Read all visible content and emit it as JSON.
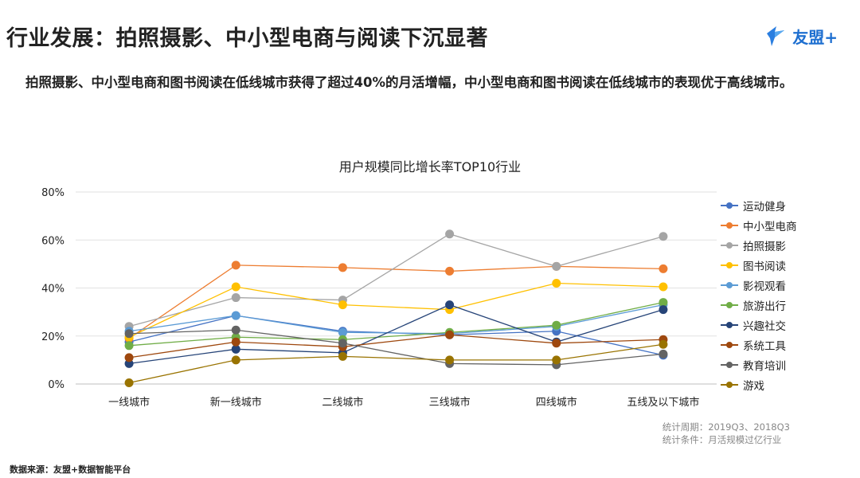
{
  "header": {
    "title": "行业发展：拍照摄影、中小型电商与阅读下沉显著",
    "logo_text": "友盟+"
  },
  "subtitle": "拍照摄影、中小型电商和图书阅读在低线城市获得了超过40%的月活增幅，中小型电商和图书阅读在低线城市的表现优于高线城市。",
  "footer": {
    "note_line1": "统计周期：2019Q3、2018Q3",
    "note_line2": "统计条件：月活规模过亿行业",
    "source": "数据来源：友盟+数据智能平台"
  },
  "chart_data": {
    "type": "line",
    "title": "用户规模同比增长率TOP10行业",
    "categories": [
      "一线城市",
      "新一线城市",
      "二线城市",
      "三线城市",
      "四线城市",
      "五线及以下城市"
    ],
    "ylim": [
      0,
      80
    ],
    "yticks": [
      0,
      20,
      40,
      60,
      80
    ],
    "ytick_labels": [
      "0%",
      "20%",
      "40%",
      "60%",
      "80%"
    ],
    "grid": true,
    "legend_position": "right",
    "series": [
      {
        "name": "运动健身",
        "color": "#4472c4",
        "values": [
          17.5,
          28.5,
          22,
          20.5,
          22,
          12
        ]
      },
      {
        "name": "中小型电商",
        "color": "#ed7d31",
        "values": [
          19,
          49.5,
          48.5,
          47,
          49,
          48
        ]
      },
      {
        "name": "拍照摄影",
        "color": "#a5a5a5",
        "values": [
          24,
          36,
          35,
          62.5,
          49,
          61.5
        ]
      },
      {
        "name": "图书阅读",
        "color": "#ffc000",
        "values": [
          19.5,
          40.5,
          33,
          31,
          42,
          40.5
        ]
      },
      {
        "name": "影视观看",
        "color": "#5b9bd5",
        "values": [
          22,
          28.5,
          21.5,
          21,
          24,
          33
        ]
      },
      {
        "name": "旅游出行",
        "color": "#70ad47",
        "values": [
          16,
          19.5,
          18.5,
          21.5,
          24.5,
          34
        ]
      },
      {
        "name": "兴趣社交",
        "color": "#264478",
        "values": [
          8.5,
          14.5,
          13,
          33,
          17.5,
          31
        ]
      },
      {
        "name": "系统工具",
        "color": "#9e480e",
        "values": [
          11,
          17.5,
          15.5,
          20.5,
          17,
          18.5
        ]
      },
      {
        "name": "教育培训",
        "color": "#636363",
        "values": [
          21,
          22.5,
          17,
          8.5,
          8,
          12.5
        ]
      },
      {
        "name": "游戏",
        "color": "#997300",
        "values": [
          0.5,
          10,
          11.5,
          10,
          10,
          16.5
        ]
      }
    ]
  }
}
